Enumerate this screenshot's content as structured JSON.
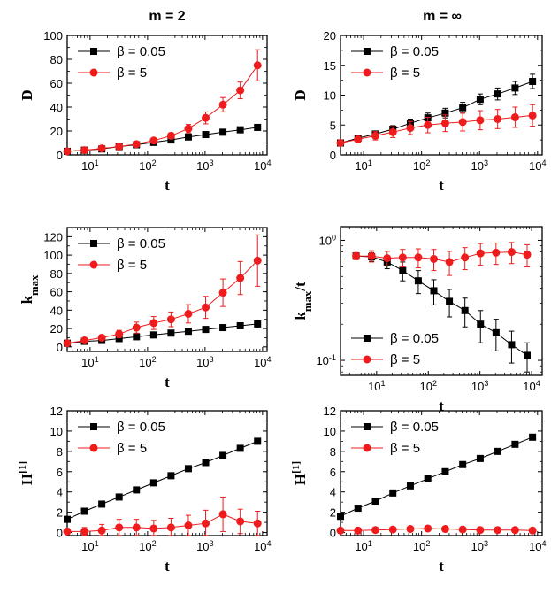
{
  "figure": {
    "column_titles": [
      "m = 2",
      "m = ∞"
    ]
  },
  "colors": {
    "series_black": "#000000",
    "series_red": "#ee1c1c"
  },
  "chart_data": [
    {
      "id": "D_m2",
      "type": "line",
      "xscale": "log",
      "yscale": "linear",
      "xlabel": "t",
      "ylabel": "D",
      "xlim": [
        4,
        12000
      ],
      "ylim": [
        0,
        100
      ],
      "xticks": [
        10,
        100,
        1000,
        10000
      ],
      "xticklabels": [
        "10^1",
        "10^2",
        "10^3",
        "10^4"
      ],
      "yticks": [
        0,
        20,
        40,
        60,
        80,
        100
      ],
      "yticklabels": [
        "0",
        "20",
        "40",
        "60",
        "80",
        "100"
      ],
      "legend": "top-left",
      "x": [
        4,
        8,
        16,
        32,
        64,
        128,
        256,
        512,
        1024,
        2048,
        4096,
        8192
      ],
      "series": [
        {
          "name": "β = 0.05",
          "color": "#000000",
          "marker": "square",
          "values": [
            3,
            4,
            5,
            7,
            8.5,
            10.5,
            12.5,
            15,
            17,
            19,
            21,
            23
          ],
          "errors": [
            0.3,
            0.4,
            0.5,
            0.6,
            0.7,
            0.8,
            1,
            1,
            1.2,
            1.3,
            1.4,
            1.6
          ]
        },
        {
          "name": "β = 5",
          "color": "#ee1c1c",
          "marker": "circle",
          "values": [
            3,
            4,
            5.5,
            7,
            9,
            12,
            16,
            22,
            31,
            42,
            54,
            75
          ],
          "errors": [
            0.4,
            0.5,
            0.8,
            1,
            1.3,
            1.8,
            2.5,
            3.5,
            5,
            6,
            7,
            13
          ]
        }
      ]
    },
    {
      "id": "D_minf",
      "type": "line",
      "xscale": "log",
      "yscale": "linear",
      "xlabel": "t",
      "ylabel": "D",
      "xlim": [
        4,
        12000
      ],
      "ylim": [
        0,
        20
      ],
      "xticks": [
        10,
        100,
        1000,
        10000
      ],
      "xticklabels": [
        "10^1",
        "10^2",
        "10^3",
        "10^4"
      ],
      "yticks": [
        0,
        5,
        10,
        15,
        20
      ],
      "yticklabels": [
        "0",
        "5",
        "10",
        "15",
        "20"
      ],
      "legend": "top-left",
      "x": [
        4,
        8,
        16,
        32,
        64,
        128,
        256,
        512,
        1024,
        2048,
        4096,
        8192
      ],
      "series": [
        {
          "name": "β = 0.05",
          "color": "#000000",
          "marker": "square",
          "values": [
            2,
            2.8,
            3.5,
            4.3,
            5.3,
            6.2,
            7,
            7.9,
            9.3,
            10.2,
            11.2,
            12.3
          ],
          "errors": [
            0.3,
            0.4,
            0.5,
            0.6,
            0.7,
            0.8,
            0.8,
            0.9,
            0.9,
            1,
            1.1,
            1.2
          ]
        },
        {
          "name": "β = 5",
          "color": "#ee1c1c",
          "marker": "circle",
          "values": [
            2,
            2.6,
            3.2,
            3.8,
            4.5,
            5,
            5.3,
            5.5,
            5.8,
            6,
            6.3,
            6.6
          ],
          "errors": [
            0.3,
            0.5,
            0.7,
            0.9,
            1.1,
            1.3,
            1.4,
            1.5,
            1.6,
            1.6,
            1.7,
            1.8
          ]
        }
      ]
    },
    {
      "id": "kmax_m2",
      "type": "line",
      "xscale": "log",
      "yscale": "linear",
      "xlabel": "t",
      "ylabel": "k_max",
      "xlim": [
        4,
        12000
      ],
      "ylim": [
        -5,
        130
      ],
      "xticks": [
        10,
        100,
        1000,
        10000
      ],
      "xticklabels": [
        "10^1",
        "10^2",
        "10^3",
        "10^4"
      ],
      "yticks": [
        0,
        20,
        40,
        60,
        80,
        100,
        120
      ],
      "yticklabels": [
        "0",
        "20",
        "40",
        "60",
        "80",
        "100",
        "120"
      ],
      "legend": "top-left",
      "x": [
        4,
        8,
        16,
        32,
        64,
        128,
        256,
        512,
        1024,
        2048,
        4096,
        8192
      ],
      "series": [
        {
          "name": "β = 0.05",
          "color": "#000000",
          "marker": "square",
          "values": [
            4,
            6,
            7,
            9,
            11,
            13,
            15,
            17,
            19,
            21,
            23,
            25
          ],
          "errors": [
            0.6,
            0.7,
            0.8,
            1,
            1.2,
            1.5,
            2,
            2.2,
            2.5,
            2.8,
            3,
            3.2
          ]
        },
        {
          "name": "β = 5",
          "color": "#ee1c1c",
          "marker": "circle",
          "values": [
            4,
            7,
            10,
            14,
            21,
            26,
            30,
            36,
            43,
            59,
            75,
            94
          ],
          "errors": [
            1.5,
            2,
            3,
            4,
            6,
            7,
            8,
            10,
            12,
            15,
            18,
            28
          ]
        }
      ]
    },
    {
      "id": "kmax_t_minf",
      "type": "line",
      "xscale": "log",
      "yscale": "log",
      "xlabel": "t",
      "ylabel": "k_max/t",
      "xlim": [
        2,
        16000
      ],
      "ylim": [
        0.075,
        1.3
      ],
      "xticks": [
        10,
        100,
        1000,
        10000
      ],
      "xticklabels": [
        "10^1",
        "10^2",
        "10^3",
        "10^4"
      ],
      "yticks": [
        0.1,
        1
      ],
      "yticklabels": [
        "10^-1",
        "10^0"
      ],
      "legend": "bottom-left",
      "x": [
        4,
        8,
        16,
        32,
        64,
        128,
        256,
        512,
        1024,
        2048,
        4096,
        8192
      ],
      "series": [
        {
          "name": "β = 0.05",
          "color": "#000000",
          "marker": "square",
          "values": [
            0.74,
            0.73,
            0.66,
            0.56,
            0.46,
            0.38,
            0.31,
            0.26,
            0.2,
            0.17,
            0.135,
            0.11
          ],
          "errors": [
            0.04,
            0.06,
            0.08,
            0.1,
            0.1,
            0.09,
            0.08,
            0.07,
            0.06,
            0.05,
            0.04,
            0.03
          ]
        },
        {
          "name": "β = 5",
          "color": "#ee1c1c",
          "marker": "circle",
          "values": [
            0.74,
            0.74,
            0.71,
            0.72,
            0.72,
            0.7,
            0.66,
            0.72,
            0.78,
            0.79,
            0.8,
            0.76
          ],
          "errors": [
            0.05,
            0.08,
            0.1,
            0.12,
            0.13,
            0.14,
            0.15,
            0.15,
            0.16,
            0.16,
            0.16,
            0.16
          ]
        }
      ]
    },
    {
      "id": "H_m2",
      "type": "line",
      "xscale": "log",
      "yscale": "linear",
      "xlabel": "t",
      "ylabel": "H^[1]",
      "xlim": [
        4,
        12000
      ],
      "ylim": [
        -0.3,
        12
      ],
      "xticks": [
        10,
        100,
        1000,
        10000
      ],
      "xticklabels": [
        "10^1",
        "10^2",
        "10^3",
        "10^4"
      ],
      "yticks": [
        0,
        2,
        4,
        6,
        8,
        10,
        12
      ],
      "yticklabels": [
        "0",
        "2",
        "4",
        "6",
        "8",
        "10",
        "12"
      ],
      "legend": "top-left",
      "x": [
        4,
        8,
        16,
        32,
        64,
        128,
        256,
        512,
        1024,
        2048,
        4096,
        8192
      ],
      "series": [
        {
          "name": "β = 0.05",
          "color": "#000000",
          "marker": "square",
          "values": [
            1.3,
            2.1,
            2.8,
            3.5,
            4.2,
            4.9,
            5.6,
            6.3,
            6.9,
            7.6,
            8.3,
            9.0
          ],
          "errors": [
            0.05,
            0.05,
            0.05,
            0.05,
            0.05,
            0.05,
            0.05,
            0.05,
            0.05,
            0.05,
            0.05,
            0.05
          ]
        },
        {
          "name": "β = 5",
          "color": "#ee1c1c",
          "marker": "circle",
          "values": [
            0.1,
            0.1,
            0.2,
            0.5,
            0.5,
            0.4,
            0.5,
            0.7,
            0.9,
            1.8,
            1.1,
            0.9
          ],
          "errors": [
            0.3,
            0.4,
            0.6,
            0.8,
            0.8,
            0.8,
            0.9,
            1,
            1.3,
            1.7,
            1.2,
            1.2
          ]
        }
      ]
    },
    {
      "id": "H_minf",
      "type": "line",
      "xscale": "log",
      "yscale": "linear",
      "xlabel": "t",
      "ylabel": "H^[1]",
      "xlim": [
        4,
        12000
      ],
      "ylim": [
        -0.3,
        12
      ],
      "xticks": [
        10,
        100,
        1000,
        10000
      ],
      "xticklabels": [
        "10^1",
        "10^2",
        "10^3",
        "10^4"
      ],
      "yticks": [
        0,
        2,
        4,
        6,
        8,
        10,
        12
      ],
      "yticklabels": [
        "0",
        "2",
        "4",
        "6",
        "8",
        "10",
        "12"
      ],
      "legend": "top-left",
      "x": [
        4,
        8,
        16,
        32,
        64,
        128,
        256,
        512,
        1024,
        2048,
        4096,
        8192
      ],
      "series": [
        {
          "name": "β = 0.05",
          "color": "#000000",
          "marker": "square",
          "values": [
            1.6,
            2.4,
            3.1,
            3.9,
            4.6,
            5.3,
            6.0,
            6.7,
            7.3,
            8.0,
            8.7,
            9.4
          ],
          "errors": [
            0.05,
            0.05,
            0.05,
            0.05,
            0.05,
            0.05,
            0.05,
            0.05,
            0.05,
            0.05,
            0.05,
            0.05
          ]
        },
        {
          "name": "β = 5",
          "color": "#ee1c1c",
          "marker": "circle",
          "values": [
            0.2,
            0.2,
            0.25,
            0.3,
            0.35,
            0.4,
            0.35,
            0.3,
            0.25,
            0.25,
            0.25,
            0.2
          ],
          "errors": [
            0.05,
            0.05,
            0.05,
            0.05,
            0.05,
            0.05,
            0.05,
            0.05,
            0.05,
            0.05,
            0.05,
            0.05
          ]
        }
      ]
    }
  ]
}
